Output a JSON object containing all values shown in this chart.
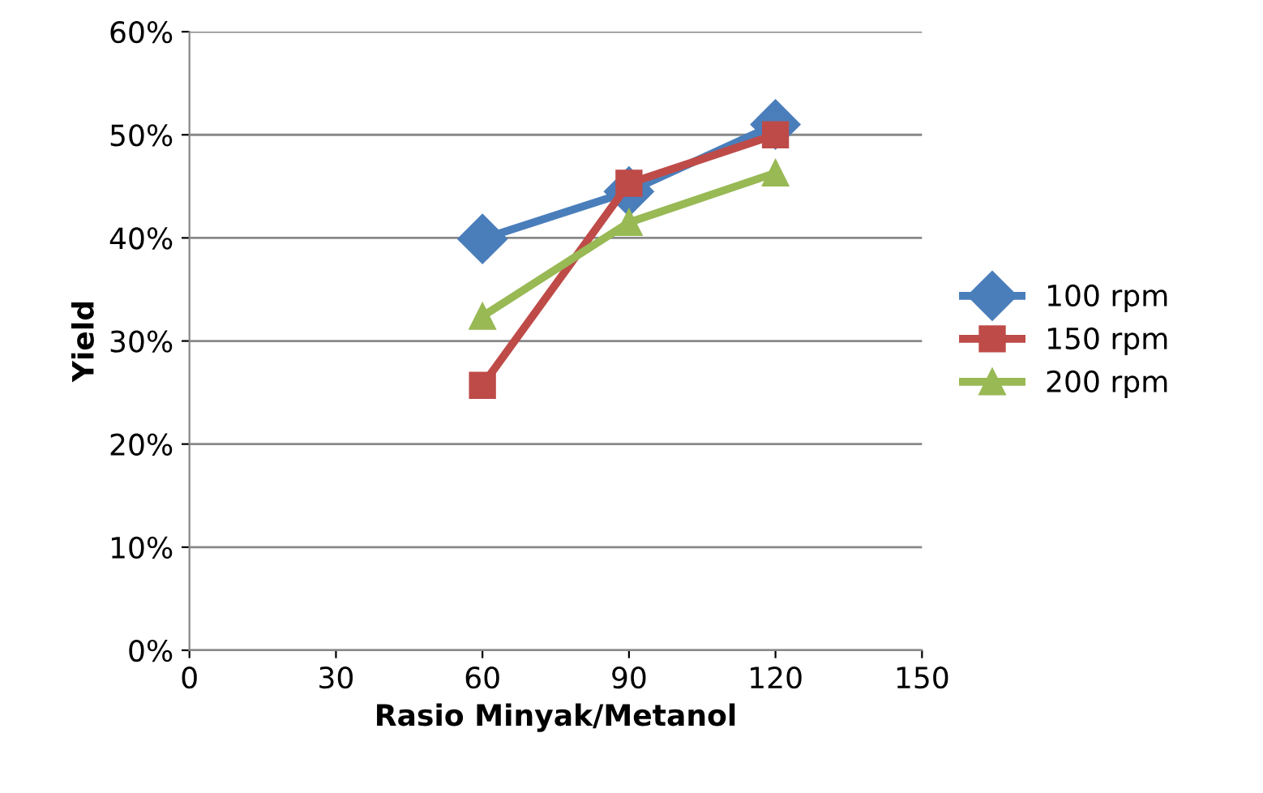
{
  "chart_data": {
    "type": "line",
    "xlabel": "Rasio Minyak/Metanol",
    "ylabel": "Yield",
    "x": [
      60,
      90,
      120
    ],
    "series": [
      {
        "name": "100 rpm",
        "color": "#4a7ebb",
        "marker": "diamond",
        "values": [
          39.9,
          44.5,
          51.0
        ]
      },
      {
        "name": "150 rpm",
        "color": "#be4b48",
        "marker": "square",
        "values": [
          25.7,
          45.3,
          50.0
        ]
      },
      {
        "name": "200 rpm",
        "color": "#98b954",
        "marker": "triangle",
        "values": [
          32.4,
          41.5,
          46.3
        ]
      }
    ],
    "xlim": [
      0,
      150
    ],
    "xticks": [
      0,
      30,
      60,
      90,
      120,
      150
    ],
    "ylim": [
      0,
      60
    ],
    "yticks": [
      {
        "value": 0,
        "label": "0%"
      },
      {
        "value": 10,
        "label": "10%"
      },
      {
        "value": 20,
        "label": "20%"
      },
      {
        "value": 30,
        "label": "30%"
      },
      {
        "value": 40,
        "label": "40%"
      },
      {
        "value": 50,
        "label": "50%"
      },
      {
        "value": 60,
        "label": "60%"
      }
    ],
    "grid": "y",
    "legend": "right",
    "line_style": "solid"
  }
}
